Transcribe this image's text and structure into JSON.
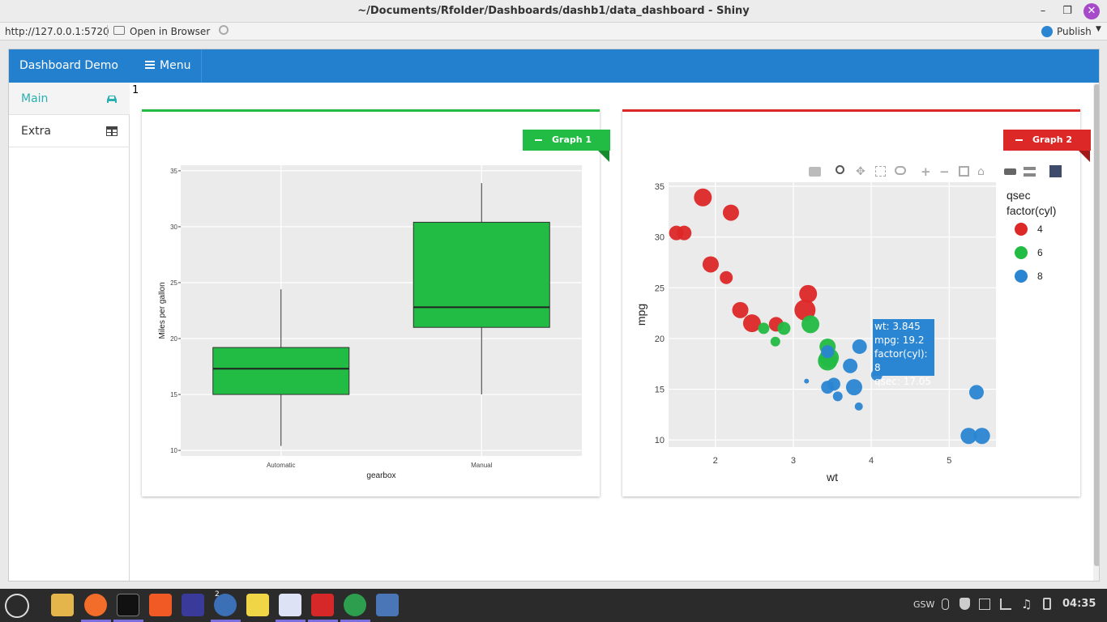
{
  "window": {
    "title": "~/Documents/Rfolder/Dashboards/dashb1/data_dashboard - Shiny"
  },
  "toolbar": {
    "url": "http://127.0.0.1:5720",
    "open_in_browser": "Open in Browser",
    "publish": "Publish"
  },
  "header": {
    "logo": "Dashboard Demo",
    "menu": "Menu"
  },
  "sidebar": {
    "items": [
      {
        "label": "Main",
        "icon": "car-icon"
      },
      {
        "label": "Extra",
        "icon": "table-icon"
      }
    ]
  },
  "content": {
    "counter": "1"
  },
  "box1": {
    "ribbon": "Graph 1",
    "color": "#22bb44"
  },
  "box2": {
    "ribbon": "Graph 2",
    "color": "#dd2828"
  },
  "tooltip": {
    "line1": "wt: 3.845",
    "line2": "mpg: 19.2",
    "line3": "factor(cyl): 8",
    "line4": "qsec: 17.05"
  },
  "taskbar": {
    "badge": "2",
    "tray_text": "GSW",
    "clock": "04:35"
  },
  "chart_data": [
    {
      "type": "box",
      "xlabel": "gearbox",
      "ylabel": "Miles per gallon",
      "ylim": [
        9.5,
        35.5
      ],
      "yticks": [
        10,
        15,
        20,
        25,
        30,
        35
      ],
      "categories": [
        "Automatic",
        "Manual"
      ],
      "boxes": [
        {
          "min": 10.4,
          "q1": 15,
          "median": 17.3,
          "q3": 19.2,
          "max": 24.4
        },
        {
          "min": 15,
          "q1": 21,
          "median": 22.8,
          "q3": 30.4,
          "max": 33.9
        }
      ],
      "fill": "#22bb44"
    },
    {
      "type": "scatter",
      "xlabel": "wt",
      "ylabel": "mpg",
      "legend_title1": "qsec",
      "legend_title2": "factor(cyl)",
      "xlim": [
        1.4,
        5.6
      ],
      "ylim": [
        9.3,
        35.4
      ],
      "xticks": [
        2,
        3,
        4,
        5
      ],
      "yticks": [
        10,
        15,
        20,
        25,
        30,
        35
      ],
      "series": [
        {
          "name": "4",
          "color": "#dd2828",
          "points": [
            [
              1.5,
              30.4,
              9
            ],
            [
              1.6,
              30.4,
              9
            ],
            [
              1.84,
              33.9,
              11
            ],
            [
              2.2,
              32.4,
              10
            ],
            [
              1.94,
              27.3,
              10
            ],
            [
              2.14,
              26,
              8
            ],
            [
              2.32,
              22.8,
              10
            ],
            [
              2.47,
              21.5,
              11
            ],
            [
              2.78,
              21.4,
              9
            ],
            [
              3.19,
              24.4,
              11
            ],
            [
              3.15,
              22.8,
              13
            ]
          ]
        },
        {
          "name": "6",
          "color": "#22bb44",
          "points": [
            [
              2.62,
              21,
              7
            ],
            [
              2.88,
              21,
              8
            ],
            [
              2.77,
              19.7,
              6
            ],
            [
              3.22,
              21.4,
              11
            ],
            [
              3.44,
              19.2,
              10
            ],
            [
              3.44,
              17.8,
              12
            ],
            [
              3.46,
              18.1,
              12
            ]
          ]
        },
        {
          "name": "8",
          "color": "#2a85d2",
          "points": [
            [
              3.44,
              18.7,
              8
            ],
            [
              3.57,
              14.3,
              6
            ],
            [
              3.73,
              17.3,
              9
            ],
            [
              3.78,
              15.2,
              10
            ],
            [
              3.84,
              13.3,
              5
            ],
            [
              3.85,
              19.2,
              9
            ],
            [
              4.07,
              16.4,
              7
            ],
            [
              3.52,
              15.5,
              8
            ],
            [
              3.44,
              15.2,
              8
            ],
            [
              3.17,
              15.8,
              3
            ],
            [
              5.25,
              10.4,
              10
            ],
            [
              5.42,
              10.4,
              10
            ],
            [
              5.35,
              14.7,
              9
            ]
          ]
        }
      ]
    }
  ]
}
